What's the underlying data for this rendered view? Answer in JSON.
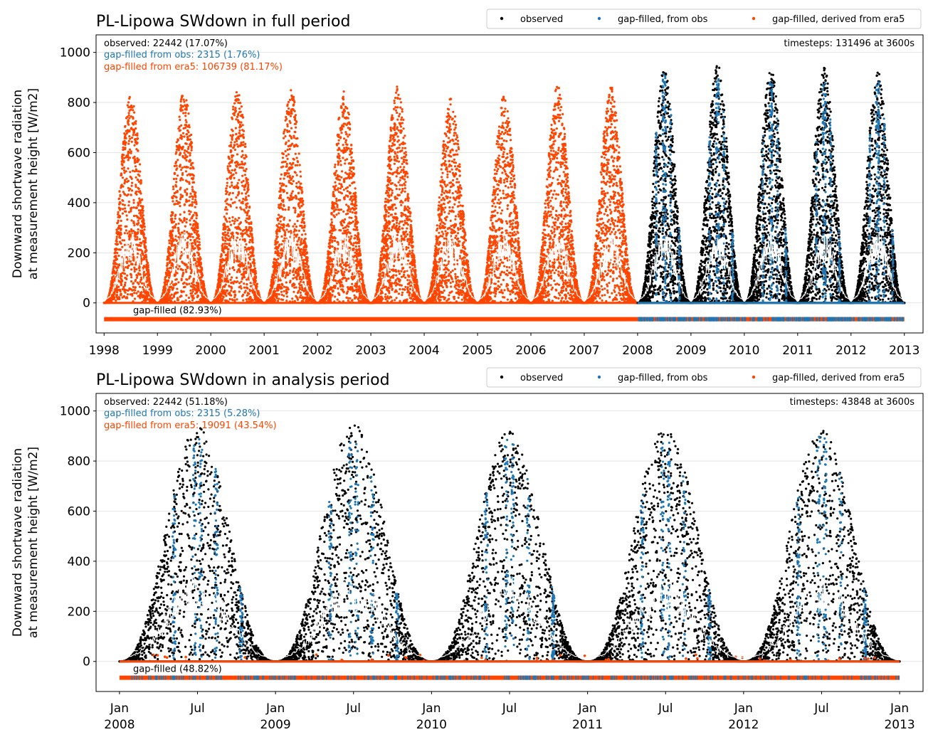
{
  "colors": {
    "observed": "#000000",
    "gap_obs": "#1f77b4",
    "gap_era5": "#ff4500",
    "mean_line": "#ffffff",
    "grid": "#dddddd"
  },
  "legend": {
    "placement": "top-right",
    "entries": [
      "observed",
      "gap-filled, from obs",
      "gap-filled, derived from era5"
    ]
  },
  "chart_data": [
    {
      "type": "scatter",
      "title": "PL-Lipowa SWdown in full period",
      "ylabel_line1": "Downward shortwave radiation",
      "ylabel_line2": "at measurement height [W/m2]",
      "ylim": [
        -120,
        1070
      ],
      "xlim": [
        1997.85,
        2013.35
      ],
      "yticks": [
        0,
        200,
        400,
        600,
        800,
        1000
      ],
      "xticks": [
        1998,
        1999,
        2000,
        2001,
        2002,
        2003,
        2004,
        2005,
        2006,
        2007,
        2008,
        2009,
        2010,
        2011,
        2012,
        2013
      ],
      "xtick_labels": [
        "1998",
        "1999",
        "2000",
        "2001",
        "2002",
        "2003",
        "2004",
        "2005",
        "2006",
        "2007",
        "2008",
        "2009",
        "2010",
        "2011",
        "2012",
        "2013"
      ],
      "grid": "horizontal",
      "stats": {
        "observed": "observed: 22442 (17.07%)",
        "gap_obs": "gap-filled from obs: 2315 (1.76%)",
        "gap_era5": "gap-filled from era5: 106739 (81.17%)",
        "timesteps": "timesteps: 131496 at 3600s",
        "gap_filled": "gap-filled (82.93%)"
      },
      "series": [
        {
          "name": "gap-filled, derived from era5",
          "x_range": [
            1998.0,
            2008.0
          ],
          "annual_peaks_y": [
            830,
            850,
            855,
            855,
            845,
            865,
            820,
            830,
            865,
            865
          ]
        },
        {
          "name": "observed",
          "x_range": [
            2008.0,
            2013.0
          ],
          "annual_peaks_y": [
            935,
            955,
            930,
            940,
            930
          ]
        },
        {
          "name": "gap-filled, from obs",
          "x_range": [
            2008.0,
            2013.0
          ],
          "annual_peaks_y": [
            940,
            900,
            890,
            880,
            900
          ]
        }
      ],
      "mean_line_peak_y": 270,
      "gap_bar_y": -65
    },
    {
      "type": "scatter",
      "title": "PL-Lipowa SWdown in analysis period",
      "ylabel_line1": "Downward shortwave radiation",
      "ylabel_line2": "at measurement height [W/m2]",
      "ylim": [
        -120,
        1070
      ],
      "xlim": [
        2007.85,
        2013.15
      ],
      "yticks": [
        0,
        200,
        400,
        600,
        800,
        1000
      ],
      "xticks": [
        2008.0,
        2008.5,
        2009.0,
        2009.5,
        2010.0,
        2010.5,
        2011.0,
        2011.5,
        2012.0,
        2012.5,
        2013.0
      ],
      "xtick_labels": [
        [
          "Jan",
          "2008"
        ],
        [
          "Jul",
          ""
        ],
        [
          "Jan",
          "2009"
        ],
        [
          "Jul",
          ""
        ],
        [
          "Jan",
          "2010"
        ],
        [
          "Jul",
          ""
        ],
        [
          "Jan",
          "2011"
        ],
        [
          "Jul",
          ""
        ],
        [
          "Jan",
          "2012"
        ],
        [
          "Jul",
          ""
        ],
        [
          "Jan",
          "2013"
        ]
      ],
      "grid": "horizontal",
      "stats": {
        "observed": "observed: 22442 (51.18%)",
        "gap_obs": "gap-filled from obs: 2315 (5.28%)",
        "gap_era5": "gap-filled from era5: 19091 (43.54%)",
        "timesteps": "timesteps: 43848 at 3600s",
        "gap_filled": "gap-filled (48.82%)"
      },
      "series": [
        {
          "name": "observed",
          "x_range": [
            2008.0,
            2013.0
          ],
          "annual_peaks_y": [
            935,
            955,
            930,
            940,
            930
          ]
        },
        {
          "name": "gap-filled, from obs",
          "x_range": [
            2008.0,
            2013.0
          ],
          "annual_peaks_y": [
            920,
            880,
            890,
            880,
            900
          ]
        },
        {
          "name": "gap-filled, derived from era5",
          "x_range": [
            2008.0,
            2013.0
          ],
          "annual_peaks_y": [
            30,
            30,
            30,
            30,
            30
          ]
        }
      ],
      "mean_line_peak_y": 330,
      "gap_bar_y": -65
    }
  ]
}
